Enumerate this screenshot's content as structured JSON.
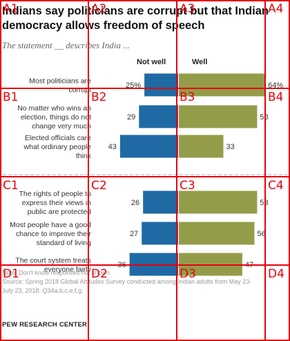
{
  "title": "Indians say politicians are corrupt but that Indian democracy allows freedom of speech",
  "subtitle": "The statement __ describes India ...",
  "headers": {
    "not_well": "Not well",
    "well": "Well"
  },
  "chart_data": {
    "type": "bar",
    "orientation": "horizontal-diverging",
    "categories": [
      "Most politicians are corrupt",
      "No matter who wins an election, things do not change very much",
      "Elected officials care what ordinary people think",
      "The rights of people to express their views in public are protected",
      "Most people have a good chance to improve their standard of living",
      "The court system treats everyone fairly"
    ],
    "category_lines": [
      [
        "Most politicians are",
        "corrupt"
      ],
      [
        "No matter who wins an",
        "election, things do not",
        "change very much"
      ],
      [
        "Elected officials care",
        "what ordinary people",
        "think"
      ],
      [
        "The rights of people to",
        "express their views in",
        "public are protected"
      ],
      [
        "Most people have a good",
        "chance to improve their",
        "standard of living"
      ],
      [
        "The court system treats",
        "everyone fairly"
      ]
    ],
    "series": [
      {
        "name": "Not well",
        "values": [
          25,
          29,
          43,
          26,
          27,
          36
        ],
        "labels": [
          "25%",
          "29",
          "43",
          "26",
          "27",
          "36"
        ],
        "color": "#1f6aa5"
      },
      {
        "name": "Well",
        "values": [
          64,
          58,
          33,
          58,
          56,
          47
        ],
        "labels": [
          "64%",
          "58",
          "33",
          "58",
          "56",
          "47"
        ],
        "color": "#949c4a"
      }
    ],
    "groups": [
      [
        0,
        1,
        2
      ],
      [
        3,
        4,
        5
      ]
    ]
  },
  "notes": {
    "note": "Note: Don't know responses not shown.",
    "source_1": "Source: Spring 2018 Global Attitudes Survey conducted among Indian adults from May 23-",
    "source_2": "July 23, 2018. Q34a,b,c,e,f,g."
  },
  "logo": "PEW RESEARCH CENTER",
  "grid": {
    "labels": [
      [
        "A1",
        "A2",
        "A3",
        "A4"
      ],
      [
        "B1",
        "B2",
        "B3",
        "B4"
      ],
      [
        "C1",
        "C2",
        "C3",
        "C4"
      ],
      [
        "D1",
        "D2",
        "D3",
        "D4"
      ]
    ]
  }
}
